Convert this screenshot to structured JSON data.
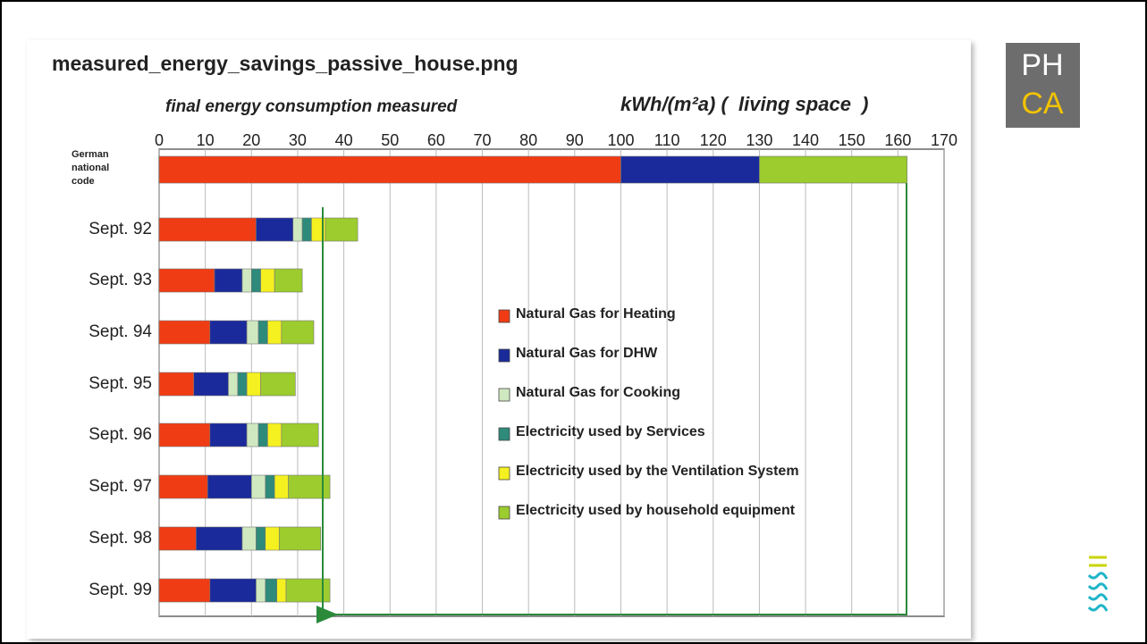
{
  "logo": {
    "top": "PH",
    "bottom": "CA"
  },
  "chart_data": {
    "type": "stacked-barh",
    "title": "measured_energy_savings_passive_house.png",
    "x_label": "final energy consumption measured",
    "unit_label": "kWh/(m²a) (  living space  )",
    "categories": [
      "German national code",
      "Sept. 92",
      "Sept. 93",
      "Sept. 94",
      "Sept. 95",
      "Sept. 96",
      "Sept. 97",
      "Sept. 98",
      "Sept. 99"
    ],
    "series": [
      {
        "name": "Natural Gas for Heating",
        "color": "#f03c14",
        "values": [
          100,
          21,
          12,
          11,
          7.5,
          11,
          10.5,
          8,
          11
        ]
      },
      {
        "name": "Natural Gas for DHW",
        "color": "#1a2a9a",
        "values": [
          30,
          8,
          6,
          8,
          7.5,
          8,
          9.5,
          10,
          10
        ]
      },
      {
        "name": "Natural Gas for Cooking",
        "color": "#cfe8c0",
        "values": [
          null,
          2,
          2,
          2.5,
          2,
          2.5,
          3,
          3,
          2
        ]
      },
      {
        "name": "Electricity used by Services",
        "color": "#2e8a7a",
        "values": [
          null,
          2,
          2,
          2,
          2,
          2,
          2,
          2,
          2.5
        ]
      },
      {
        "name": "Electricity used by the Ventilation System",
        "color": "#f5f020",
        "values": [
          null,
          3,
          3,
          3,
          3,
          3,
          3,
          3,
          2
        ]
      },
      {
        "name": "Electricity used by household equipment",
        "color": "#9ccc2e",
        "values": [
          32,
          7,
          6,
          7,
          7.5,
          8,
          9,
          9,
          9.5
        ]
      }
    ],
    "xlim": [
      0,
      170
    ],
    "xticks": [
      0,
      10,
      20,
      30,
      40,
      50,
      60,
      70,
      80,
      90,
      100,
      110,
      120,
      130,
      140,
      150,
      160,
      170
    ],
    "grid": true
  }
}
